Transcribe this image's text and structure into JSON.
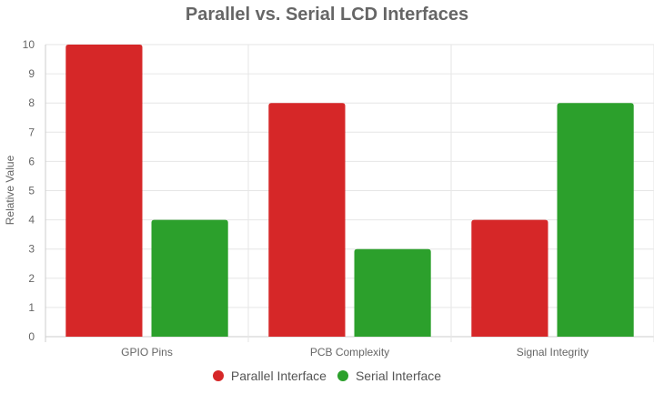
{
  "chart_data": {
    "type": "bar",
    "title": "Parallel vs. Serial LCD Interfaces",
    "xlabel": "",
    "ylabel": "Relative Value",
    "categories": [
      "GPIO Pins",
      "PCB Complexity",
      "Signal Integrity"
    ],
    "series": [
      {
        "name": "Parallel Interface",
        "values": [
          10,
          8,
          4
        ],
        "color": "#d62728"
      },
      {
        "name": "Serial Interface",
        "values": [
          4,
          3,
          8
        ],
        "color": "#2ca02c"
      }
    ],
    "ylim": [
      0,
      10
    ],
    "yticks": [
      "0",
      "1",
      "2",
      "3",
      "4",
      "5",
      "6",
      "7",
      "8",
      "9",
      "10"
    ],
    "grid": true,
    "legend_position": "bottom"
  }
}
